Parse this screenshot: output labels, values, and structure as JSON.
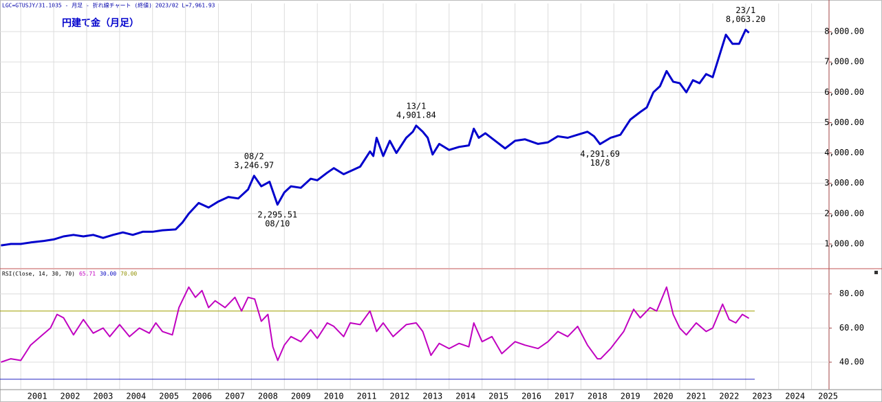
{
  "chart_data": [
    {
      "type": "line",
      "header": "LGC=GTUSJY/31.1035 - 月足 - 折れ線チャート (終値)  2023/02 L=7,961.93",
      "title": "円建て金（月足）",
      "xlim": [
        2000.37,
        2025.53
      ],
      "xticks": [
        2001,
        2002,
        2003,
        2004,
        2005,
        2006,
        2007,
        2008,
        2009,
        2010,
        2011,
        2012,
        2013,
        2014,
        2015,
        2016,
        2017,
        2018,
        2019,
        2020,
        2021,
        2022,
        2023,
        2024,
        2025
      ],
      "ylim": [
        207,
        8930
      ],
      "yticks": [
        {
          "value": 1000,
          "label": "1,000.00"
        },
        {
          "value": 2000,
          "label": "2,000.00"
        },
        {
          "value": 3000,
          "label": "3,000.00"
        },
        {
          "value": 4000,
          "label": "4,000.00"
        },
        {
          "value": 5000,
          "label": "5,000.00"
        },
        {
          "value": 6000,
          "label": "6,000.00"
        },
        {
          "value": 7000,
          "label": "7,000.00"
        },
        {
          "value": 8000,
          "label": "8,000.00"
        }
      ],
      "grid": true,
      "series": [
        {
          "color": "#0000cc",
          "x": [
            2000.4,
            2000.7,
            2001.0,
            2001.3,
            2001.7,
            2002.0,
            2002.3,
            2002.6,
            2002.9,
            2003.2,
            2003.5,
            2003.8,
            2004.1,
            2004.4,
            2004.7,
            2005.0,
            2005.3,
            2005.7,
            2005.9,
            2006.1,
            2006.4,
            2006.7,
            2007.0,
            2007.3,
            2007.6,
            2007.9,
            2008.08,
            2008.3,
            2008.55,
            2008.79,
            2009.0,
            2009.2,
            2009.5,
            2009.8,
            2010.0,
            2010.3,
            2010.5,
            2010.8,
            2011.0,
            2011.3,
            2011.6,
            2011.7,
            2011.8,
            2012.0,
            2012.2,
            2012.4,
            2012.7,
            2012.9,
            2013.0,
            2013.2,
            2013.35,
            2013.5,
            2013.7,
            2014.0,
            2014.3,
            2014.6,
            2014.75,
            2014.9,
            2015.1,
            2015.4,
            2015.7,
            2016.0,
            2016.3,
            2016.7,
            2017.0,
            2017.3,
            2017.6,
            2017.9,
            2018.2,
            2018.4,
            2018.58,
            2018.9,
            2019.2,
            2019.5,
            2019.8,
            2020.0,
            2020.2,
            2020.4,
            2020.6,
            2020.8,
            2021.0,
            2021.2,
            2021.4,
            2021.6,
            2021.8,
            2022.0,
            2022.2,
            2022.4,
            2022.6,
            2022.8,
            2023.0,
            2023.1
          ],
          "values": [
            950,
            1000,
            1000,
            1050,
            1100,
            1150,
            1250,
            1300,
            1250,
            1300,
            1200,
            1300,
            1380,
            1300,
            1400,
            1400,
            1450,
            1480,
            1700,
            2000,
            2350,
            2200,
            2400,
            2550,
            2500,
            2800,
            3246.97,
            2900,
            3050,
            2295.51,
            2700,
            2900,
            2850,
            3150,
            3100,
            3350,
            3500,
            3300,
            3400,
            3550,
            4050,
            3900,
            4500,
            3900,
            4400,
            4000,
            4500,
            4700,
            4901.84,
            4700,
            4500,
            3950,
            4300,
            4100,
            4200,
            4250,
            4800,
            4500,
            4650,
            4400,
            4150,
            4400,
            4450,
            4300,
            4350,
            4550,
            4500,
            4600,
            4700,
            4550,
            4291.69,
            4500,
            4600,
            5100,
            5350,
            5500,
            6000,
            6200,
            6700,
            6350,
            6300,
            6000,
            6400,
            6300,
            6600,
            6500,
            7200,
            7900,
            7600,
            7600,
            8063.2,
            7961.93
          ]
        }
      ],
      "annotations": [
        {
          "date": "08/2",
          "label": "3,246.97",
          "x": 2008.08,
          "value": 3246.97,
          "position": "above"
        },
        {
          "date": "08/10",
          "label": "2,295.51",
          "x": 2008.79,
          "value": 2295.51,
          "position": "below"
        },
        {
          "date": "13/1",
          "label": "4,901.84",
          "x": 2013.0,
          "value": 4901.84,
          "position": "above"
        },
        {
          "date": "18/8",
          "label": "4,291.69",
          "x": 2018.58,
          "value": 4291.69,
          "position": "below"
        },
        {
          "date": "23/1",
          "label": "8,063.20",
          "x": 2023.0,
          "value": 8063.2,
          "position": "above"
        }
      ]
    },
    {
      "type": "line",
      "header": [
        {
          "text": "RSI(Close, 14, 30, 70)",
          "color": "#000000"
        },
        {
          "text": "65.71",
          "color": "#c000c0"
        },
        {
          "text": "30.00",
          "color": "#0000c0"
        },
        {
          "text": "70.00",
          "color": "#909000"
        }
      ],
      "xlim": [
        2000.37,
        2025.53
      ],
      "xticks": [
        2001,
        2002,
        2003,
        2004,
        2005,
        2006,
        2007,
        2008,
        2009,
        2010,
        2011,
        2012,
        2013,
        2014,
        2015,
        2016,
        2017,
        2018,
        2019,
        2020,
        2021,
        2022,
        2023,
        2024,
        2025
      ],
      "ylim": [
        24.3,
        94.4
      ],
      "yticks": [
        {
          "value": 40,
          "label": "40.00"
        },
        {
          "value": 60,
          "label": "60.00"
        },
        {
          "value": 80,
          "label": "80.00"
        }
      ],
      "grid": true,
      "levels": [
        {
          "value": 70,
          "color": "#a0a000"
        },
        {
          "value": 30,
          "color": "#2020c0"
        }
      ],
      "series": [
        {
          "color": "#c000c0",
          "x": [
            2000.4,
            2000.7,
            2001.0,
            2001.3,
            2001.6,
            2001.9,
            2002.1,
            2002.3,
            2002.6,
            2002.9,
            2003.2,
            2003.5,
            2003.7,
            2004.0,
            2004.3,
            2004.6,
            2004.9,
            2005.1,
            2005.3,
            2005.6,
            2005.8,
            2006.1,
            2006.3,
            2006.5,
            2006.7,
            2006.9,
            2007.2,
            2007.5,
            2007.7,
            2007.9,
            2008.1,
            2008.3,
            2008.5,
            2008.65,
            2008.8,
            2009.0,
            2009.2,
            2009.5,
            2009.8,
            2010.0,
            2010.3,
            2010.5,
            2010.8,
            2011.0,
            2011.3,
            2011.6,
            2011.8,
            2012.0,
            2012.3,
            2012.7,
            2013.0,
            2013.2,
            2013.45,
            2013.7,
            2014.0,
            2014.3,
            2014.6,
            2014.75,
            2015.0,
            2015.3,
            2015.6,
            2016.0,
            2016.3,
            2016.7,
            2017.0,
            2017.3,
            2017.6,
            2017.9,
            2018.2,
            2018.5,
            2018.6,
            2018.9,
            2019.3,
            2019.6,
            2019.8,
            2020.1,
            2020.3,
            2020.6,
            2020.8,
            2021.0,
            2021.2,
            2021.5,
            2021.8,
            2022.0,
            2022.3,
            2022.5,
            2022.7,
            2022.9,
            2023.1
          ],
          "values": [
            40,
            42,
            41,
            50,
            55,
            60,
            68,
            66,
            56,
            65,
            57,
            60,
            55,
            62,
            55,
            60,
            57,
            63,
            58,
            56,
            72,
            84,
            78,
            82,
            72,
            76,
            72,
            78,
            70,
            78,
            77,
            64,
            68,
            49,
            41,
            50,
            55,
            52,
            59,
            54,
            63,
            61,
            55,
            63,
            62,
            70,
            58,
            63,
            55,
            62,
            63,
            58,
            44,
            51,
            48,
            51,
            49,
            63,
            52,
            55,
            45,
            52,
            50,
            48,
            52,
            58,
            55,
            61,
            50,
            42,
            42,
            48,
            58,
            71,
            66,
            72,
            70,
            84,
            68,
            60,
            56,
            63,
            58,
            60,
            74,
            65,
            63,
            68,
            65.71
          ]
        }
      ]
    }
  ]
}
